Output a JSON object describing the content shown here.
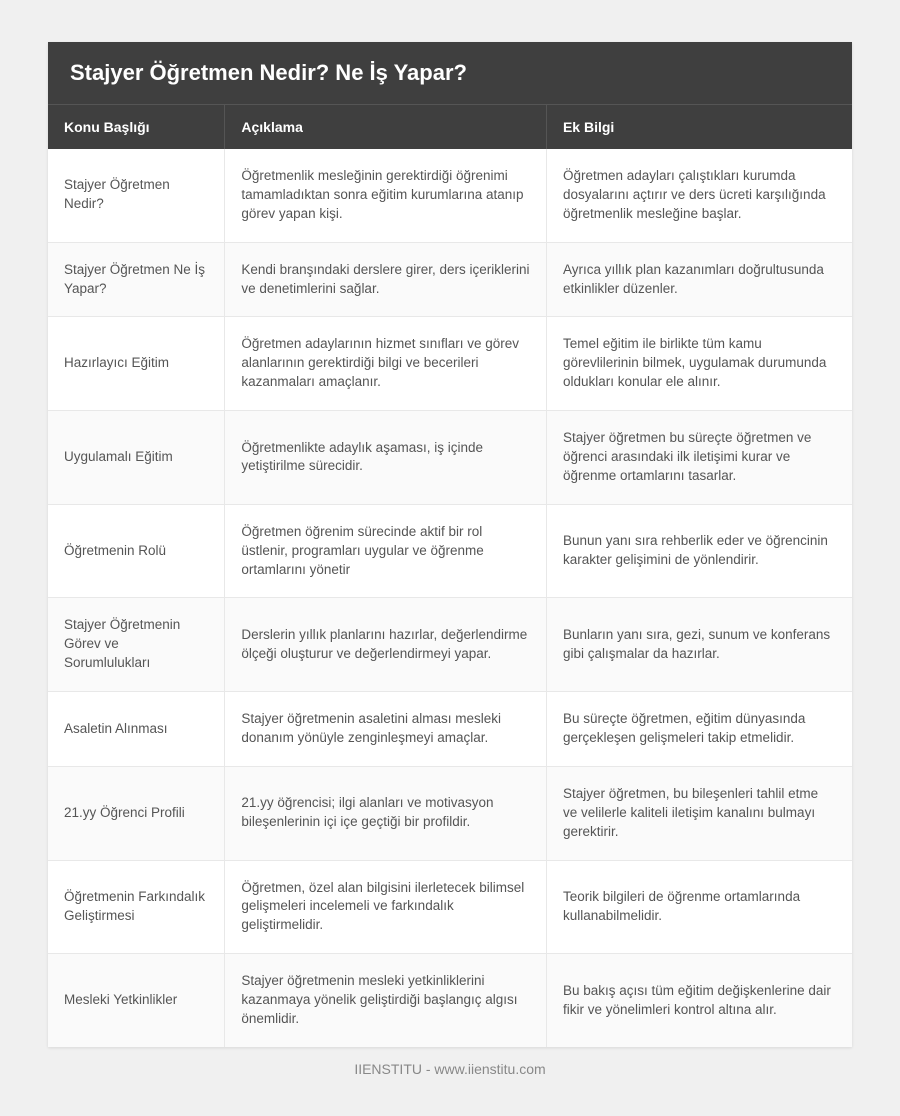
{
  "title": "Stajyer Öğretmen Nedir? Ne İş Yapar?",
  "columns": [
    "Konu Başlığı",
    "Açıklama",
    "Ek Bilgi"
  ],
  "rows": [
    {
      "topic": "Stajyer Öğretmen Nedir?",
      "description": "Öğretmenlik mesleğinin gerektirdiği öğrenimi tamamladıktan sonra eğitim kurumlarına atanıp görev yapan kişi.",
      "extra": "Öğretmen adayları çalıştıkları kurumda dosyalarını açtırır ve ders ücreti karşılığında öğretmenlik mesleğine başlar."
    },
    {
      "topic": "Stajyer Öğretmen Ne İş Yapar?",
      "description": "Kendi branşındaki derslere girer, ders içeriklerini ve denetimlerini sağlar.",
      "extra": "Ayrıca yıllık plan kazanımları doğrultusunda etkinlikler düzenler."
    },
    {
      "topic": "Hazırlayıcı Eğitim",
      "description": "Öğretmen adaylarının hizmet sınıfları ve görev alanlarının gerektirdiği bilgi ve becerileri kazanmaları amaçlanır.",
      "extra": "Temel eğitim ile birlikte tüm kamu görevlilerinin bilmek, uygulamak durumunda oldukları konular ele alınır."
    },
    {
      "topic": "Uygulamalı Eğitim",
      "description": "Öğretmenlikte adaylık aşaması, iş içinde yetiştirilme sürecidir.",
      "extra": "Stajyer öğretmen bu süreçte öğretmen ve öğrenci arasındaki ilk iletişimi kurar ve öğrenme ortamlarını tasarlar."
    },
    {
      "topic": "Öğretmenin Rolü",
      "description": "Öğretmen öğrenim sürecinde aktif bir rol üstlenir, programları uygular ve öğrenme ortamlarını yönetir",
      "extra": "Bunun yanı sıra rehberlik eder ve öğrencinin karakter gelişimini de yönlendirir."
    },
    {
      "topic": "Stajyer Öğretmenin Görev ve Sorumlulukları",
      "description": "Derslerin yıllık planlarını hazırlar, değerlendirme ölçeği oluşturur ve değerlendirmeyi yapar.",
      "extra": "Bunların yanı sıra, gezi, sunum ve konferans gibi çalışmalar da hazırlar."
    },
    {
      "topic": "Asaletin Alınması",
      "description": "Stajyer öğretmenin asaletini alması mesleki donanım yönüyle zenginleşmeyi amaçlar.",
      "extra": "Bu süreçte öğretmen, eğitim dünyasında gerçekleşen gelişmeleri takip etmelidir."
    },
    {
      "topic": "21.yy Öğrenci Profili",
      "description": "21.yy öğrencisi; ilgi alanları ve motivasyon bileşenlerinin içi içe geçtiği bir profildir.",
      "extra": "Stajyer öğretmen, bu bileşenleri tahlil etme ve velilerle kaliteli iletişim kanalını bulmayı gerektirir."
    },
    {
      "topic": "Öğretmenin Farkındalık Geliştirmesi",
      "description": "Öğretmen, özel alan bilgisini ilerletecek bilimsel gelişmeleri incelemeli ve farkındalık geliştirmelidir.",
      "extra": "Teorik bilgileri de öğrenme ortamlarında kullanabilmelidir."
    },
    {
      "topic": "Mesleki Yetkinlikler",
      "description": "Stajyer öğretmenin mesleki yetkinliklerini kazanmaya yönelik geliştirdiği başlangıç algısı önemlidir.",
      "extra": "Bu bakış açısı tüm eğitim değişkenlerine dair fikir ve yönelimleri kontrol altına alır."
    }
  ],
  "footer": "IIENSTITU - www.iienstitu.com"
}
